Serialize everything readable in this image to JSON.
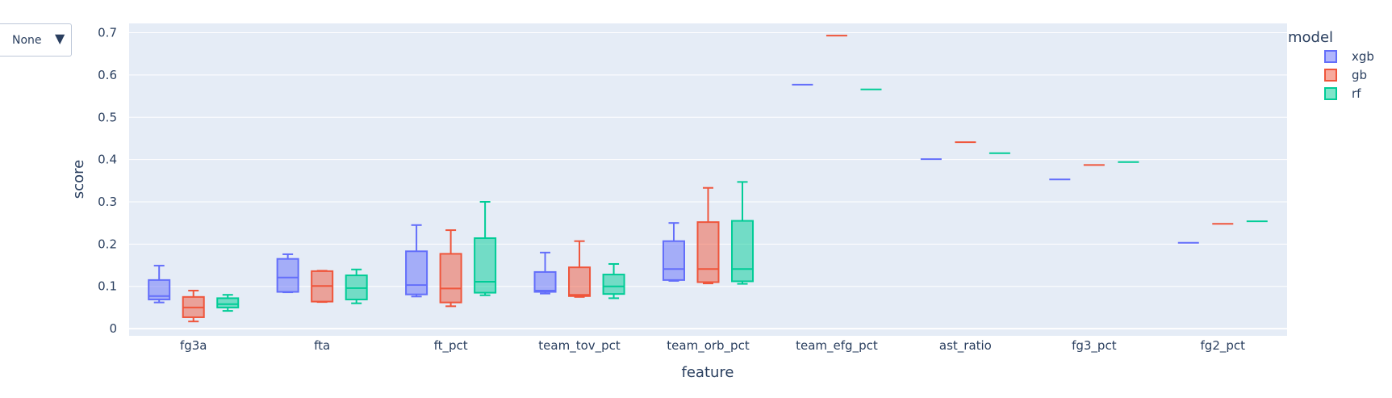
{
  "dropdown": {
    "value": "None",
    "caret": "▼"
  },
  "chart_data": {
    "type": "box",
    "xlabel": "feature",
    "ylabel": "score",
    "ylim": [
      -0.017,
      0.722
    ],
    "yticks": [
      0,
      0.1,
      0.2,
      0.3,
      0.4,
      0.5,
      0.6,
      0.7
    ],
    "ytick_labels": [
      "0",
      "0.1",
      "0.2",
      "0.3",
      "0.4",
      "0.5",
      "0.6",
      "0.7"
    ],
    "grid": true,
    "legend_title": "model",
    "legend_position": "top-right",
    "categories": [
      "fg3a",
      "fta",
      "ft_pct",
      "team_tov_pct",
      "team_orb_pct",
      "team_efg_pct",
      "ast_ratio",
      "fg3_pct",
      "fg2_pct"
    ],
    "series": [
      {
        "name": "xgb",
        "color": "#636efa",
        "boxes": [
          {
            "min": 0.062,
            "q1": 0.069,
            "median": 0.077,
            "q3": 0.115,
            "max": 0.149
          },
          {
            "min": 0.086,
            "q1": 0.087,
            "median": 0.121,
            "q3": 0.165,
            "max": 0.176
          },
          {
            "min": 0.076,
            "q1": 0.081,
            "median": 0.103,
            "q3": 0.183,
            "max": 0.245
          },
          {
            "min": 0.083,
            "q1": 0.087,
            "median": 0.09,
            "q3": 0.134,
            "max": 0.18
          },
          {
            "min": 0.113,
            "q1": 0.115,
            "median": 0.141,
            "q3": 0.207,
            "max": 0.25
          },
          {
            "min": 0.577,
            "q1": 0.577,
            "median": 0.577,
            "q3": 0.577,
            "max": 0.577
          },
          {
            "min": 0.401,
            "q1": 0.401,
            "median": 0.401,
            "q3": 0.401,
            "max": 0.401
          },
          {
            "min": 0.353,
            "q1": 0.353,
            "median": 0.353,
            "q3": 0.353,
            "max": 0.353
          },
          {
            "min": 0.203,
            "q1": 0.203,
            "median": 0.203,
            "q3": 0.203,
            "max": 0.203
          }
        ]
      },
      {
        "name": "gb",
        "color": "#ef553b",
        "boxes": [
          {
            "min": 0.017,
            "q1": 0.027,
            "median": 0.05,
            "q3": 0.075,
            "max": 0.09
          },
          {
            "min": 0.063,
            "q1": 0.064,
            "median": 0.101,
            "q3": 0.136,
            "max": 0.137
          },
          {
            "min": 0.053,
            "q1": 0.062,
            "median": 0.095,
            "q3": 0.177,
            "max": 0.233
          },
          {
            "min": 0.075,
            "q1": 0.077,
            "median": 0.08,
            "q3": 0.145,
            "max": 0.207
          },
          {
            "min": 0.107,
            "q1": 0.11,
            "median": 0.141,
            "q3": 0.252,
            "max": 0.333
          },
          {
            "min": 0.693,
            "q1": 0.693,
            "median": 0.693,
            "q3": 0.693,
            "max": 0.693
          },
          {
            "min": 0.441,
            "q1": 0.441,
            "median": 0.441,
            "q3": 0.441,
            "max": 0.441
          },
          {
            "min": 0.387,
            "q1": 0.387,
            "median": 0.387,
            "q3": 0.387,
            "max": 0.387
          },
          {
            "min": 0.248,
            "q1": 0.248,
            "median": 0.248,
            "q3": 0.248,
            "max": 0.248
          }
        ]
      },
      {
        "name": "rf",
        "color": "#00cc96",
        "boxes": [
          {
            "min": 0.042,
            "q1": 0.05,
            "median": 0.058,
            "q3": 0.072,
            "max": 0.08
          },
          {
            "min": 0.06,
            "q1": 0.069,
            "median": 0.096,
            "q3": 0.126,
            "max": 0.14
          },
          {
            "min": 0.079,
            "q1": 0.085,
            "median": 0.111,
            "q3": 0.214,
            "max": 0.3
          },
          {
            "min": 0.072,
            "q1": 0.082,
            "median": 0.1,
            "q3": 0.128,
            "max": 0.153
          },
          {
            "min": 0.106,
            "q1": 0.112,
            "median": 0.141,
            "q3": 0.255,
            "max": 0.347
          },
          {
            "min": 0.566,
            "q1": 0.566,
            "median": 0.566,
            "q3": 0.566,
            "max": 0.566
          },
          {
            "min": 0.415,
            "q1": 0.415,
            "median": 0.415,
            "q3": 0.415,
            "max": 0.415
          },
          {
            "min": 0.394,
            "q1": 0.394,
            "median": 0.394,
            "q3": 0.394,
            "max": 0.394
          },
          {
            "min": 0.254,
            "q1": 0.254,
            "median": 0.254,
            "q3": 0.254,
            "max": 0.254
          }
        ]
      }
    ]
  }
}
